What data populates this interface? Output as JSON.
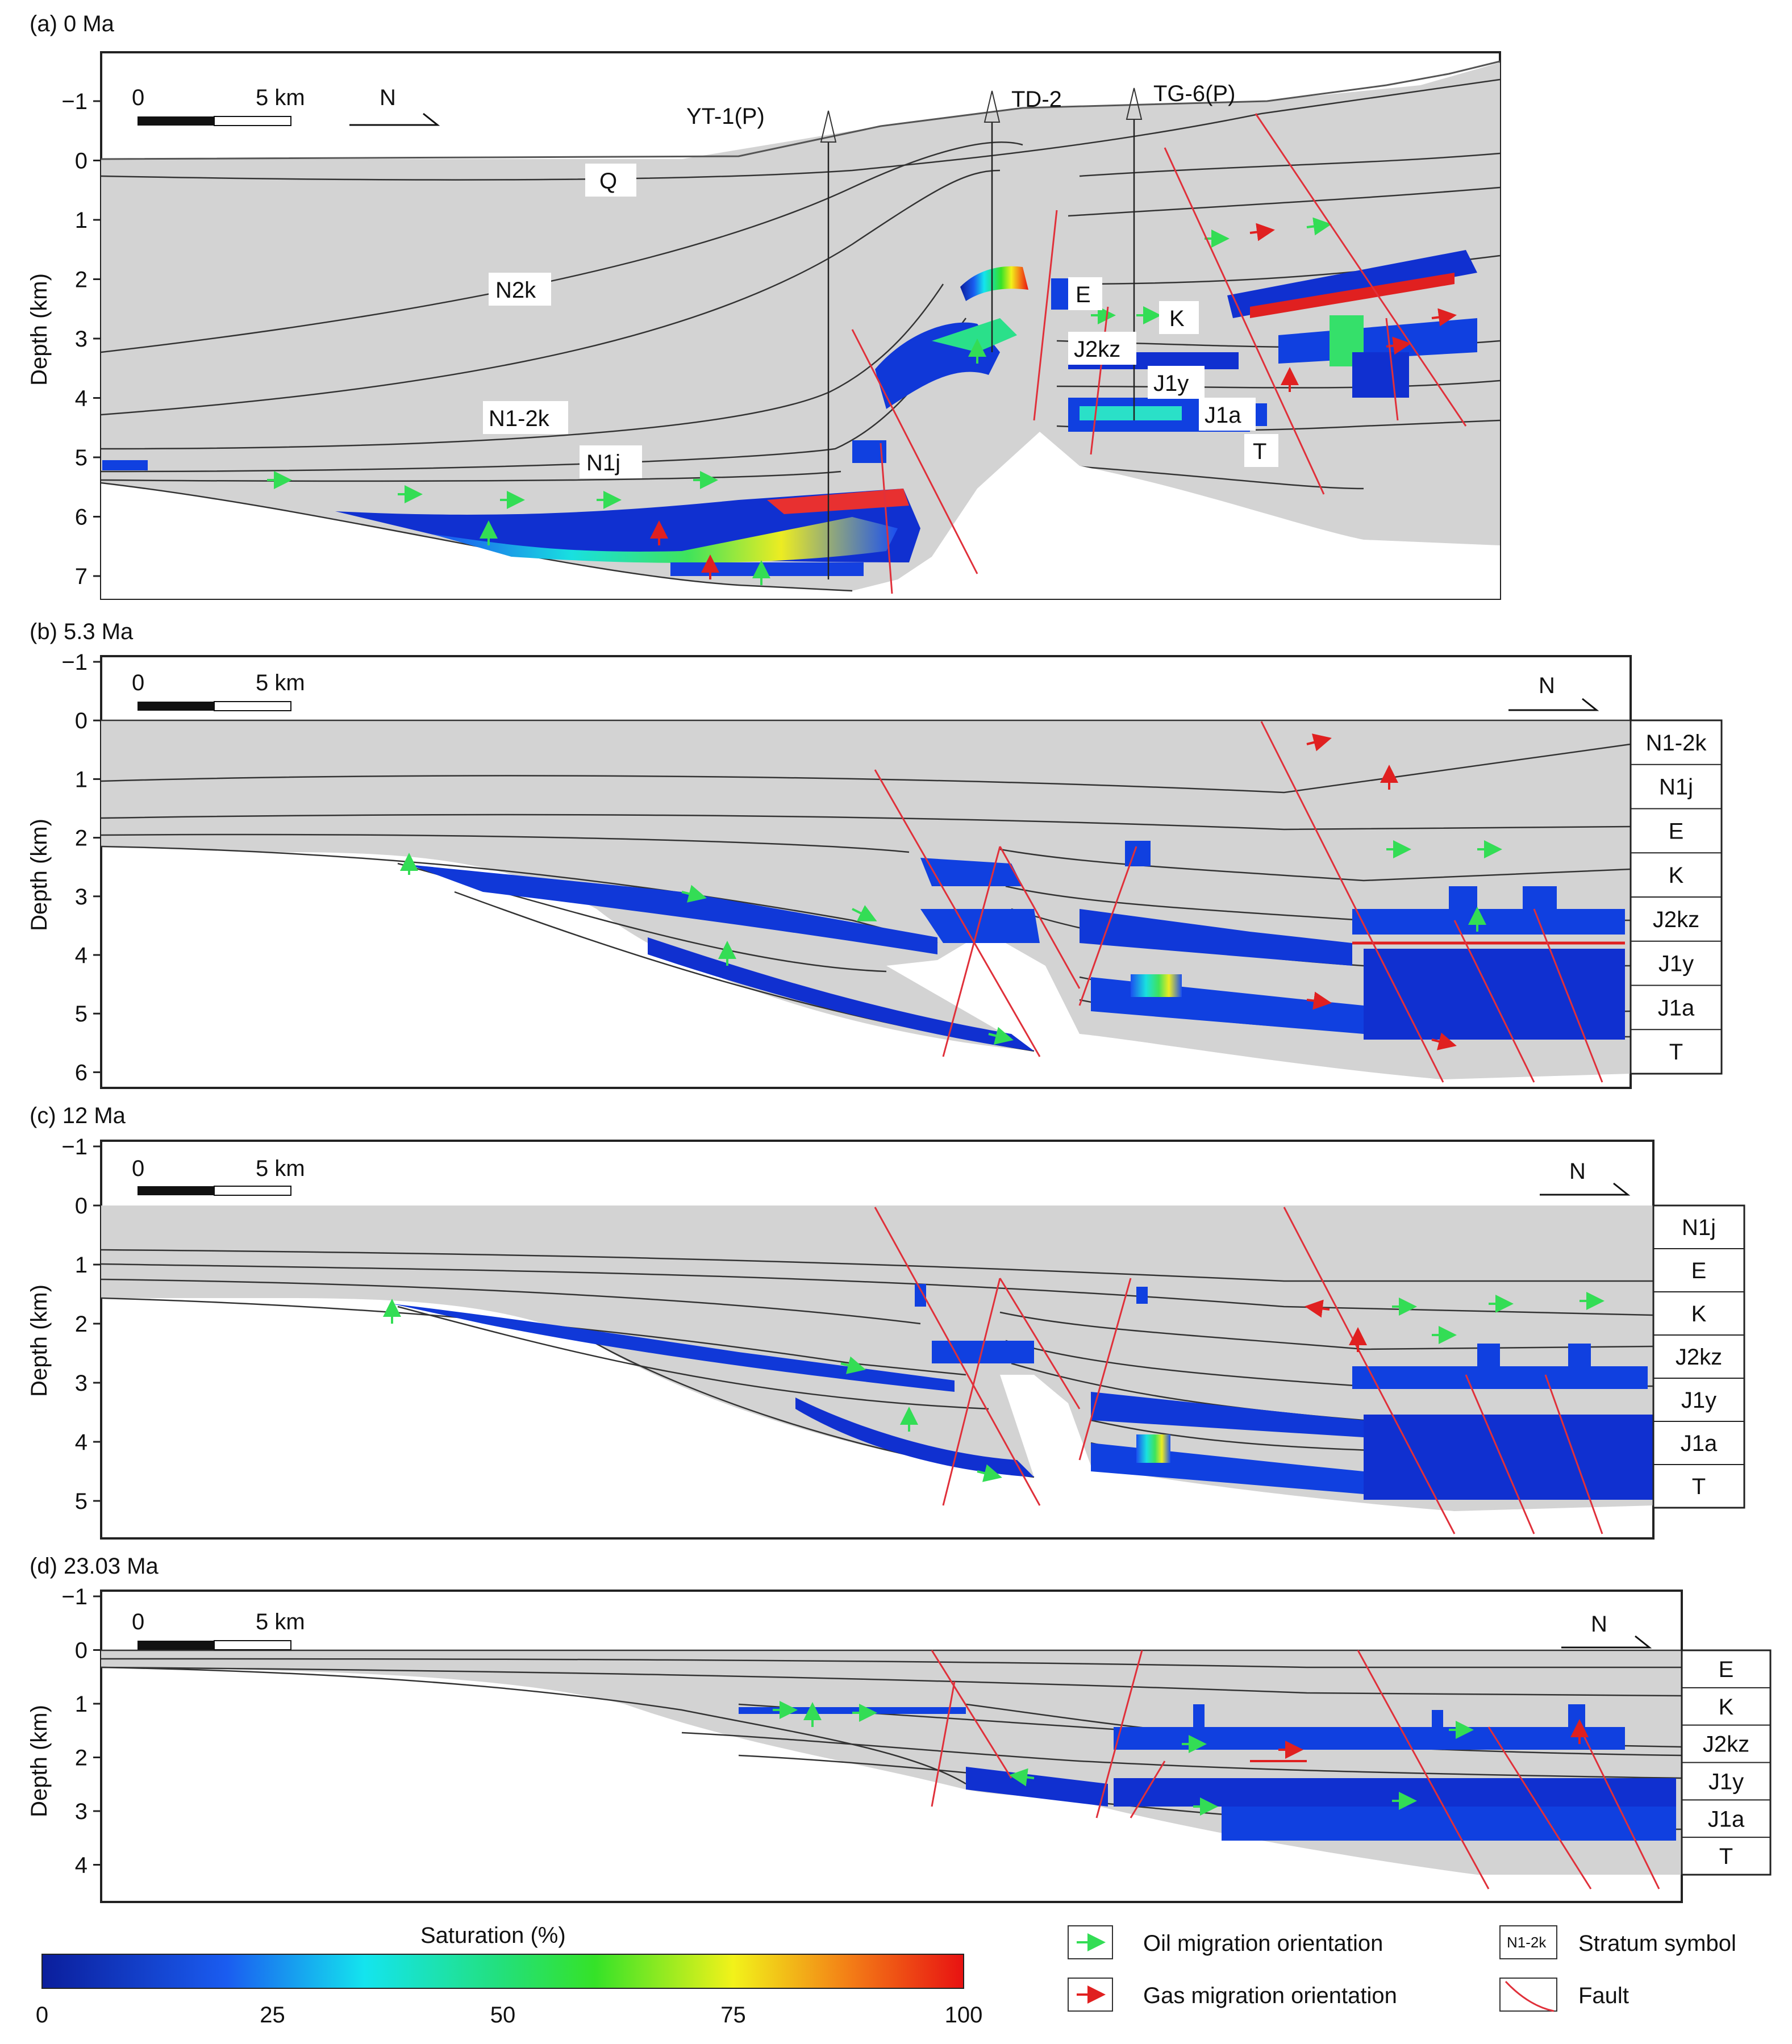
{
  "panels": [
    {
      "title": "(a) 0 Ma",
      "ylabel": "Depth (km)",
      "ticks": [
        "−1",
        "0",
        "1",
        "2",
        "3",
        "4",
        "5",
        "6",
        "7"
      ],
      "scale": {
        "zero": "0",
        "end": "5 km"
      },
      "north": "N",
      "wells": [
        "YT-1(P)",
        "TD-2",
        "TG-6(P)"
      ],
      "layers": [
        "Q",
        "N2k",
        "N1-2k",
        "N1j",
        "E",
        "K",
        "J2kz",
        "J1y",
        "J1a",
        "T"
      ]
    },
    {
      "title": "(b) 5.3 Ma",
      "ylabel": "Depth (km)",
      "ticks": [
        "−1",
        "0",
        "1",
        "2",
        "3",
        "4",
        "5",
        "6"
      ],
      "scale": {
        "zero": "0",
        "end": "5 km"
      },
      "north": "N",
      "strata": [
        "N1-2k",
        "N1j",
        "E",
        "K",
        "J2kz",
        "J1y",
        "J1a",
        "T"
      ]
    },
    {
      "title": "(c) 12 Ma",
      "ylabel": "Depth (km)",
      "ticks": [
        "−1",
        "0",
        "1",
        "2",
        "3",
        "4",
        "5"
      ],
      "scale": {
        "zero": "0",
        "end": "5 km"
      },
      "north": "N",
      "strata": [
        "N1j",
        "E",
        "K",
        "J2kz",
        "J1y",
        "J1a",
        "T"
      ]
    },
    {
      "title": "(d) 23.03 Ma",
      "ylabel": "Depth (km)",
      "ticks": [
        "−1",
        "0",
        "1",
        "2",
        "3",
        "4"
      ],
      "scale": {
        "zero": "0",
        "end": "5 km"
      },
      "north": "N",
      "strata": [
        "E",
        "K",
        "J2kz",
        "J1y",
        "J1a",
        "T"
      ]
    }
  ],
  "colorbar": {
    "title": "Saturation (%)",
    "ticks": [
      "0",
      "25",
      "50",
      "75",
      "100"
    ]
  },
  "legend": {
    "oil": "Oil migration orientation",
    "gas": "Gas migration orientation",
    "stratum_symbol_label": "Stratum symbol",
    "stratum_symbol_example": "N1-2k",
    "fault": "Fault"
  },
  "colors": {
    "rock": "#d3d3d3",
    "oil_arrow": "#33dd55",
    "gas_arrow": "#e02020",
    "fault": "#e0303a",
    "frame": "#222222"
  }
}
